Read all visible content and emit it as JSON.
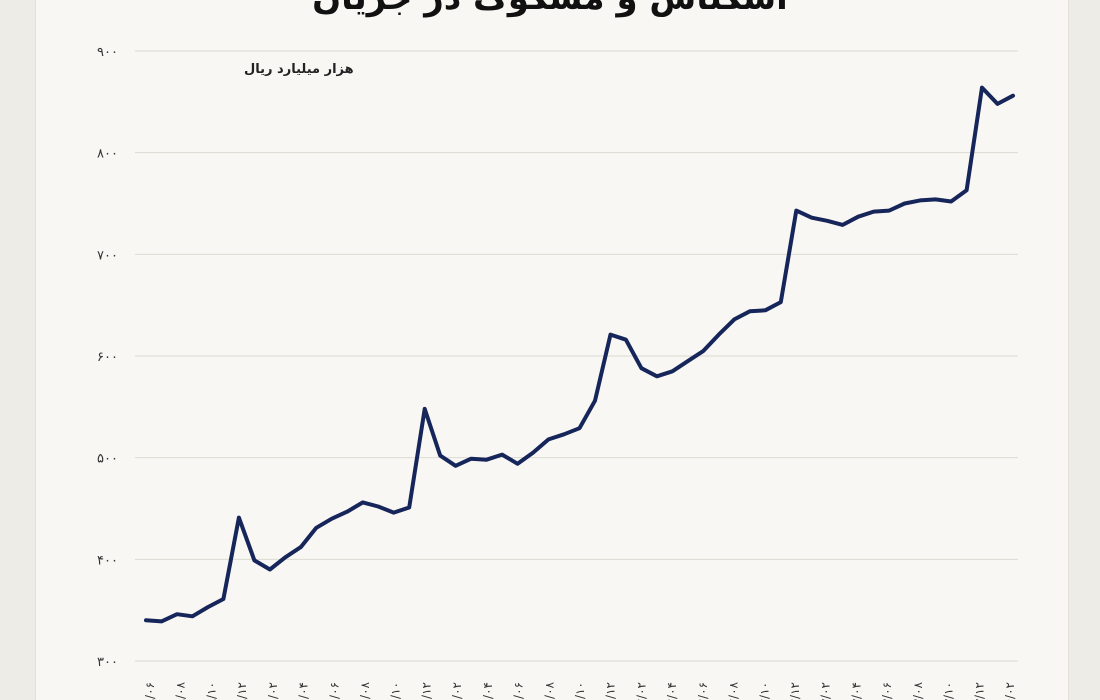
{
  "chart_data": {
    "type": "line",
    "title": "اسکناس و مسکوک در جریان",
    "unit": "هزار میلیارد ریال",
    "ylim": [
      300,
      900
    ],
    "yticks": [
      300,
      400,
      500,
      600,
      700,
      800,
      900
    ],
    "ytick_labels": [
      "۳۰۰",
      "۴۰۰",
      "۵۰۰",
      "۶۰۰",
      "۷۰۰",
      "۸۰۰",
      "۹۰۰"
    ],
    "x_labels": [
      "۱۳۹۹/۰۶",
      "۱۳۹۹/۰۸",
      "۱۳۹۹/۱۰",
      "۱۳۹۹/۱۲",
      "۱۴۰۰/۰۲",
      "۱۴۰۰/۰۴",
      "۱۴۰۰/۰۶",
      "۱۴۰۰/۰۸",
      "۱۴۰۰/۱۰",
      "۱۴۰۰/۱۲",
      "۱۴۰۱/۰۲",
      "۱۴۰۱/۰۴",
      "۱۴۰۱/۰۶",
      "۱۴۰۱/۰۸",
      "۱۴۰۱/۱۰",
      "۱۴۰۱/۱۲",
      "۱۴۰۲/۰۲",
      "۱۴۰۲/۰۴",
      "۱۴۰۲/۰۶",
      "۱۴۰۲/۰۸",
      "۱۴۰۲/۱۰",
      "۱۴۰۲/۱۲",
      "۱۴۰۳/۰۲",
      "۱۴۰۳/۰۴",
      "۱۴۰۳/۰۶",
      "۱۴۰۳/۰۸",
      "۱۴۰۳/۱۰",
      "۱۴۰۳/۱۲",
      "۱۴۰۴/۰۲"
    ],
    "series": [
      {
        "color": "#16255a",
        "values": [
          340,
          339,
          346,
          344,
          353,
          361,
          441,
          399,
          390,
          402,
          412,
          431,
          440,
          447,
          456,
          452,
          446,
          451,
          548,
          502,
          492,
          499,
          498,
          503,
          494,
          505,
          518,
          523,
          529,
          556,
          621,
          616,
          588,
          580,
          585,
          595,
          605,
          621,
          636,
          644,
          645,
          653,
          743,
          736,
          733,
          729,
          737,
          742,
          743,
          750,
          753,
          754,
          752,
          763,
          864,
          848,
          856
        ]
      }
    ]
  }
}
